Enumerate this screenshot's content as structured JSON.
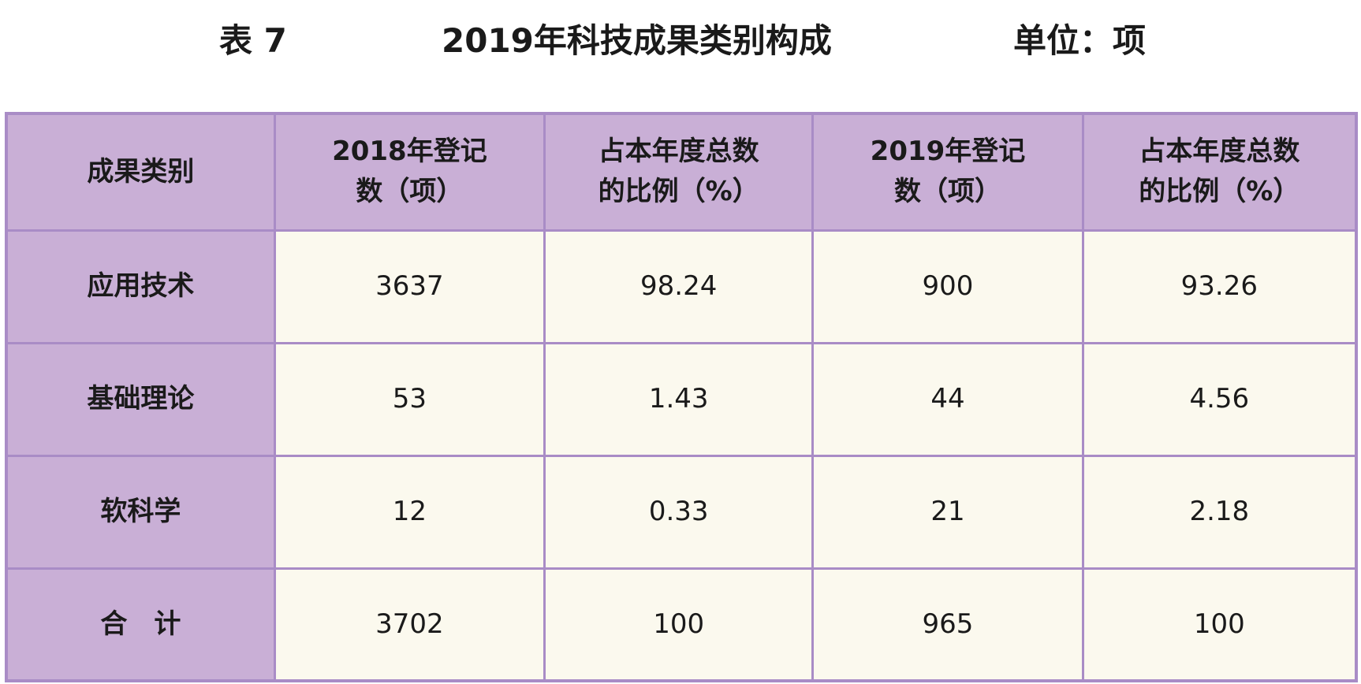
{
  "caption": {
    "label": "表 7",
    "title": "2019年科技成果类别构成",
    "unit": "单位：项"
  },
  "table": {
    "headers": [
      "成果类别",
      "2018年登记数（项）",
      "占本年度总数的比例（%）",
      "2019年登记数（项）",
      "占本年度总数的比例（%）"
    ],
    "rows": [
      [
        "应用技术",
        "3637",
        "98.24",
        "900",
        "93.26"
      ],
      [
        "基础理论",
        "53",
        "1.43",
        "44",
        "4.56"
      ],
      [
        "软科学",
        "12",
        "0.33",
        "21",
        "2.18"
      ],
      [
        "合　计",
        "3702",
        "100",
        "965",
        "100"
      ]
    ]
  },
  "colors": {
    "header_bg": "#c9afd6",
    "cell_bg": "#fbf9ee",
    "border": "#a98cc6"
  }
}
